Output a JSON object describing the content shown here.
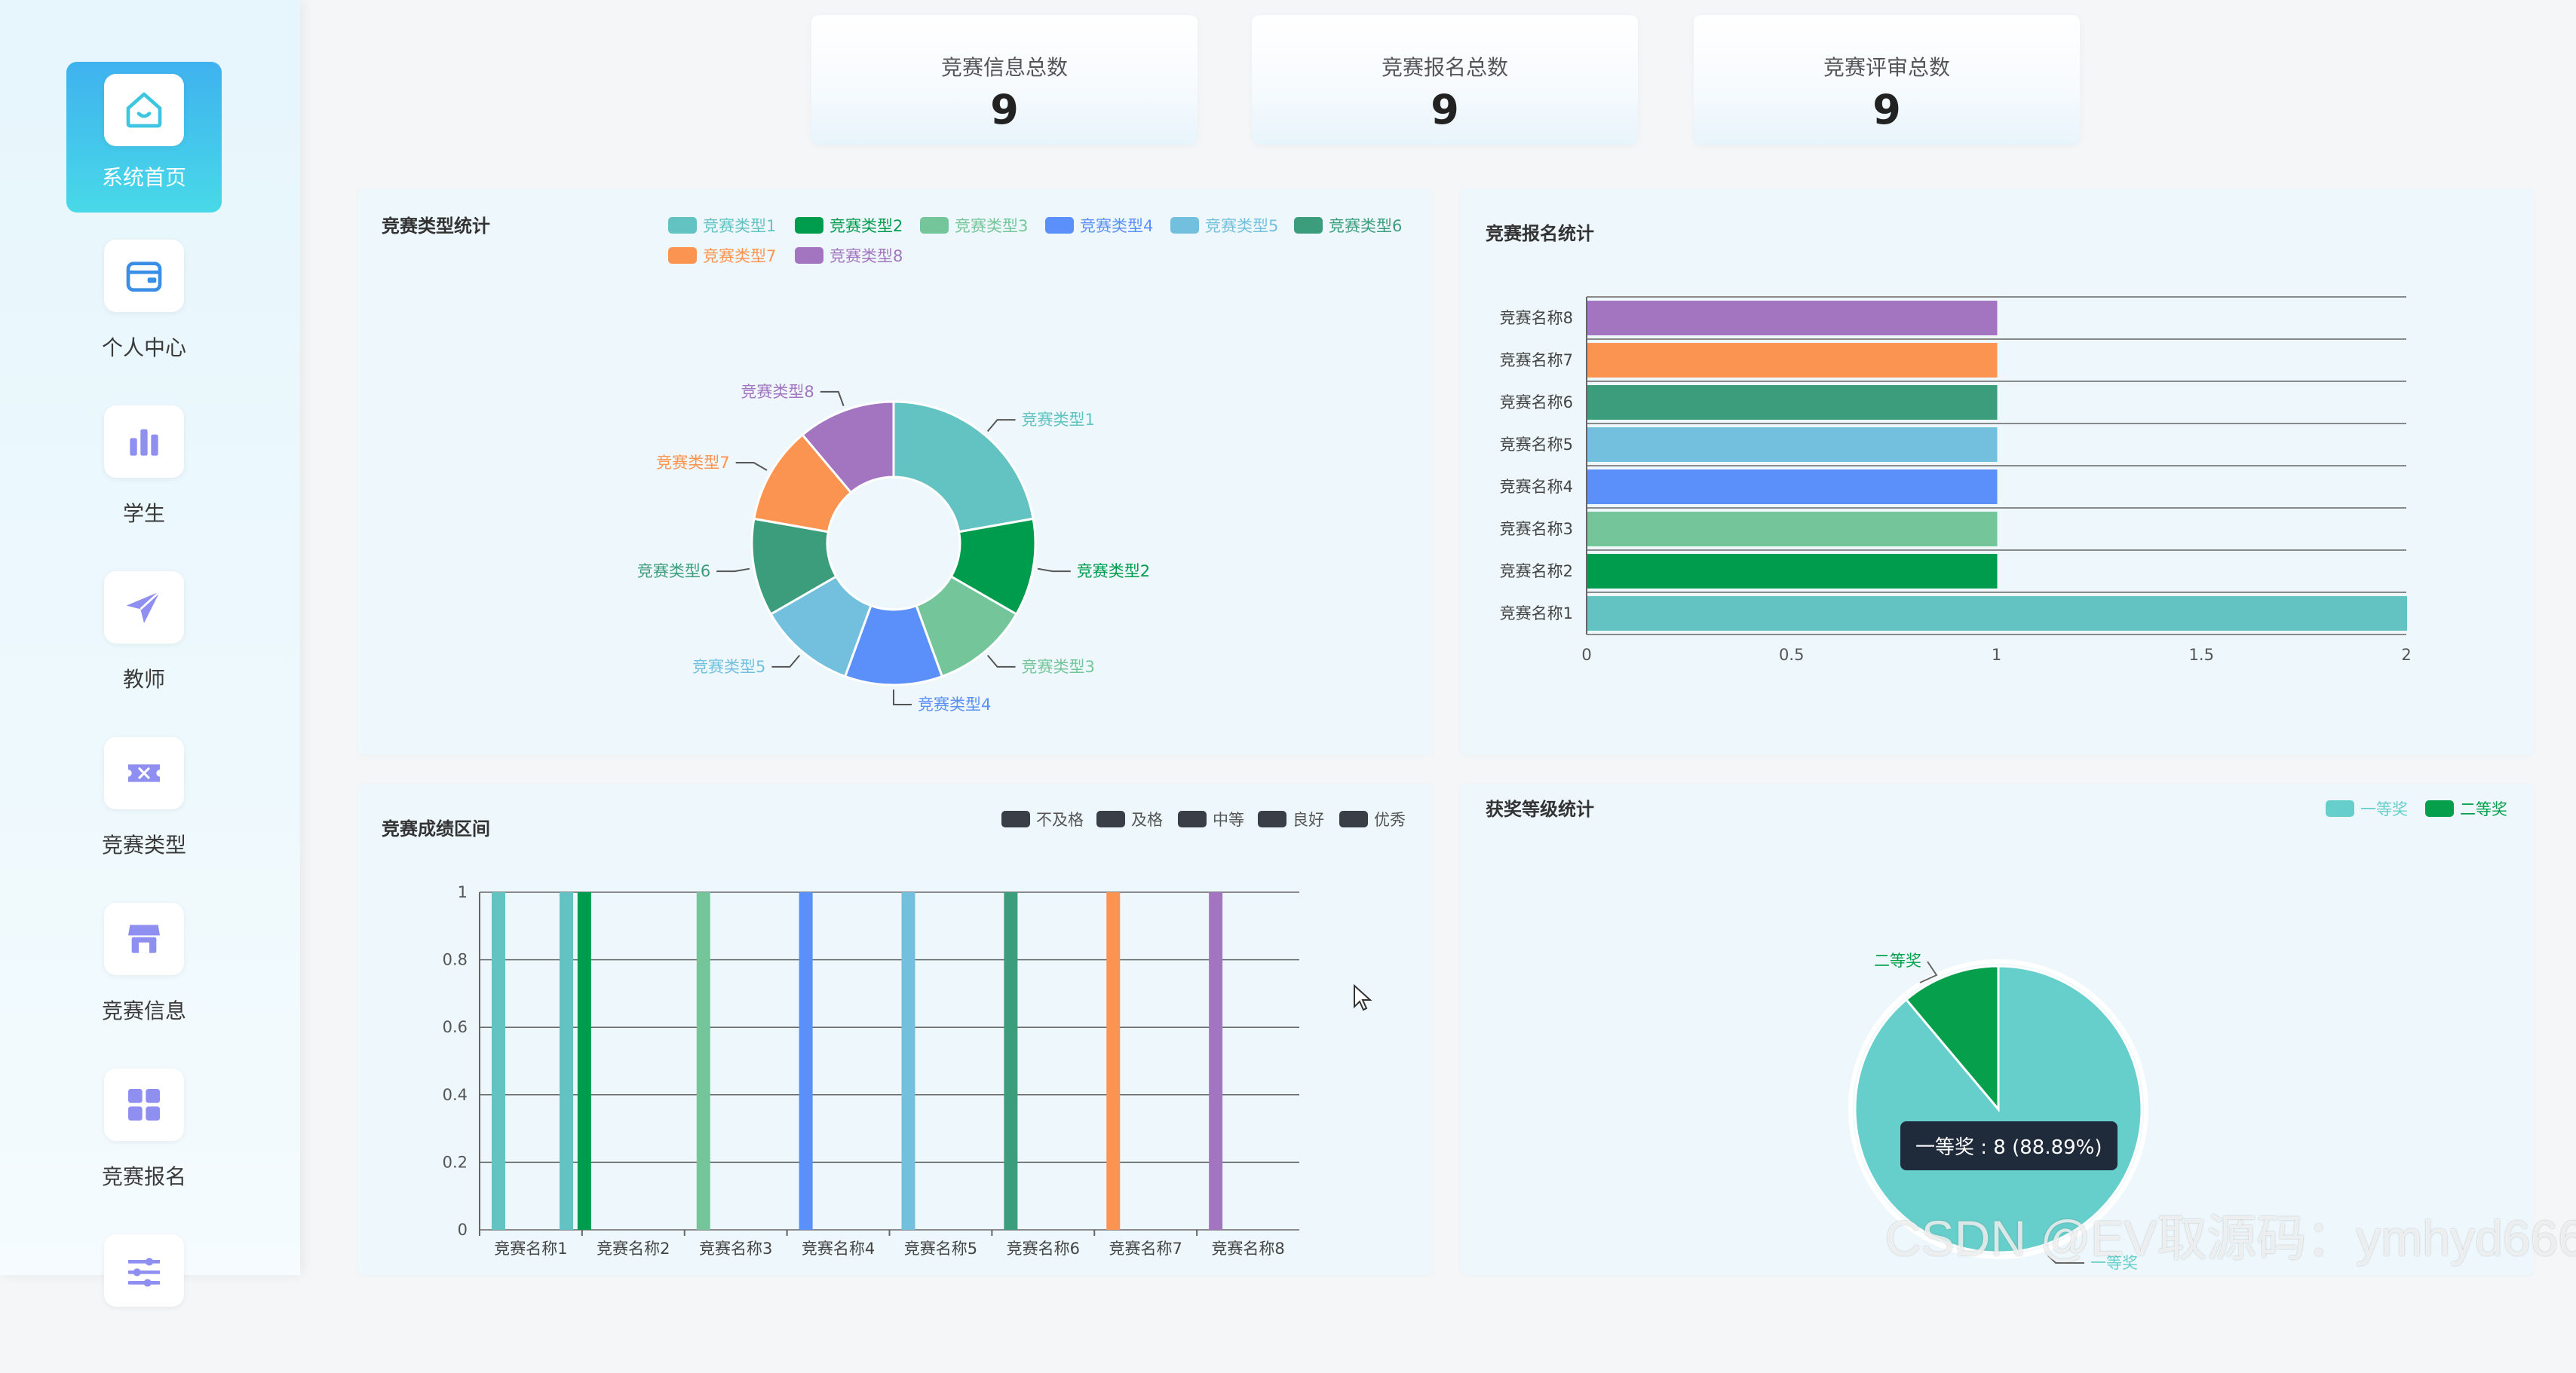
{
  "sidebar": {
    "items": [
      {
        "label": "系统首页",
        "icon": "home-icon"
      },
      {
        "label": "个人中心",
        "icon": "wallet-icon"
      },
      {
        "label": "学生",
        "icon": "bar-chart-icon"
      },
      {
        "label": "教师",
        "icon": "paper-plane-icon"
      },
      {
        "label": "竞赛类型",
        "icon": "ticket-icon"
      },
      {
        "label": "竞赛信息",
        "icon": "store-icon"
      },
      {
        "label": "竞赛报名",
        "icon": "grid-icon"
      },
      {
        "label": "",
        "icon": "sliders-icon"
      }
    ]
  },
  "stats": [
    {
      "title": "竞赛信息总数",
      "value": "9"
    },
    {
      "title": "竞赛报名总数",
      "value": "9"
    },
    {
      "title": "竞赛评审总数",
      "value": "9"
    }
  ],
  "colors": {
    "c1": "#62c3c2",
    "c2": "#009c4d",
    "c3": "#74c69a",
    "c4": "#5b8ff9",
    "c5": "#73c0de",
    "c6": "#3b9d7b",
    "c7": "#fc9451",
    "c8": "#a374c0",
    "award1": "#66cfcb",
    "award2": "#06a04d"
  },
  "charts": {
    "type_pie": {
      "title": "竞赛类型统计",
      "chart_data": {
        "type": "pie",
        "categories": [
          "竞赛类型1",
          "竞赛类型2",
          "竞赛类型3",
          "竞赛类型4",
          "竞赛类型5",
          "竞赛类型6",
          "竞赛类型7",
          "竞赛类型8"
        ],
        "values": [
          2,
          1,
          1,
          1,
          1,
          1,
          1,
          1
        ],
        "legend": "top-right"
      }
    },
    "signup_bar": {
      "title": "竞赛报名统计",
      "chart_data": {
        "type": "bar",
        "orientation": "horizontal",
        "categories": [
          "竞赛名称1",
          "竞赛名称2",
          "竞赛名称3",
          "竞赛名称4",
          "竞赛名称5",
          "竞赛名称6",
          "竞赛名称7",
          "竞赛名称8"
        ],
        "values": [
          2,
          1,
          1,
          1,
          1,
          1,
          1,
          1
        ],
        "xlim": [
          0,
          2
        ],
        "xticks": [
          "0",
          "0.5",
          "1",
          "1.5",
          "2"
        ],
        "grid": true
      }
    },
    "score_bar": {
      "title": "竞赛成绩区间",
      "legend": [
        "不及格",
        "及格",
        "中等",
        "良好",
        "优秀"
      ],
      "chart_data": {
        "type": "bar",
        "categories": [
          "竞赛名称1",
          "竞赛名称2",
          "竞赛名称3",
          "竞赛名称4",
          "竞赛名称5",
          "竞赛名称6",
          "竞赛名称7",
          "竞赛名称8"
        ],
        "bars": [
          {
            "category": "竞赛名称1",
            "values": [
              1,
              1
            ]
          },
          {
            "category": "竞赛名称2",
            "values": [
              1
            ]
          },
          {
            "category": "竞赛名称3",
            "values": [
              1
            ]
          },
          {
            "category": "竞赛名称4",
            "values": [
              1
            ]
          },
          {
            "category": "竞赛名称5",
            "values": [
              1
            ]
          },
          {
            "category": "竞赛名称6",
            "values": [
              1
            ]
          },
          {
            "category": "竞赛名称7",
            "values": [
              1
            ]
          },
          {
            "category": "竞赛名称8",
            "values": [
              1
            ]
          }
        ],
        "ylim": [
          0,
          1
        ],
        "yticks": [
          "0",
          "0.2",
          "0.4",
          "0.6",
          "0.8",
          "1"
        ],
        "grid": true
      }
    },
    "award_pie": {
      "title": "获奖等级统计",
      "legend": [
        "一等奖",
        "二等奖"
      ],
      "chart_data": {
        "type": "pie",
        "categories": [
          "一等奖",
          "二等奖"
        ],
        "values": [
          8,
          1
        ],
        "legend": "top-right"
      },
      "tooltip": "一等奖 : 8 (88.89%)",
      "outer_labels": [
        "二等奖",
        "一等奖"
      ]
    }
  },
  "watermark": "CSDN @EV取源码：ymhyd666"
}
